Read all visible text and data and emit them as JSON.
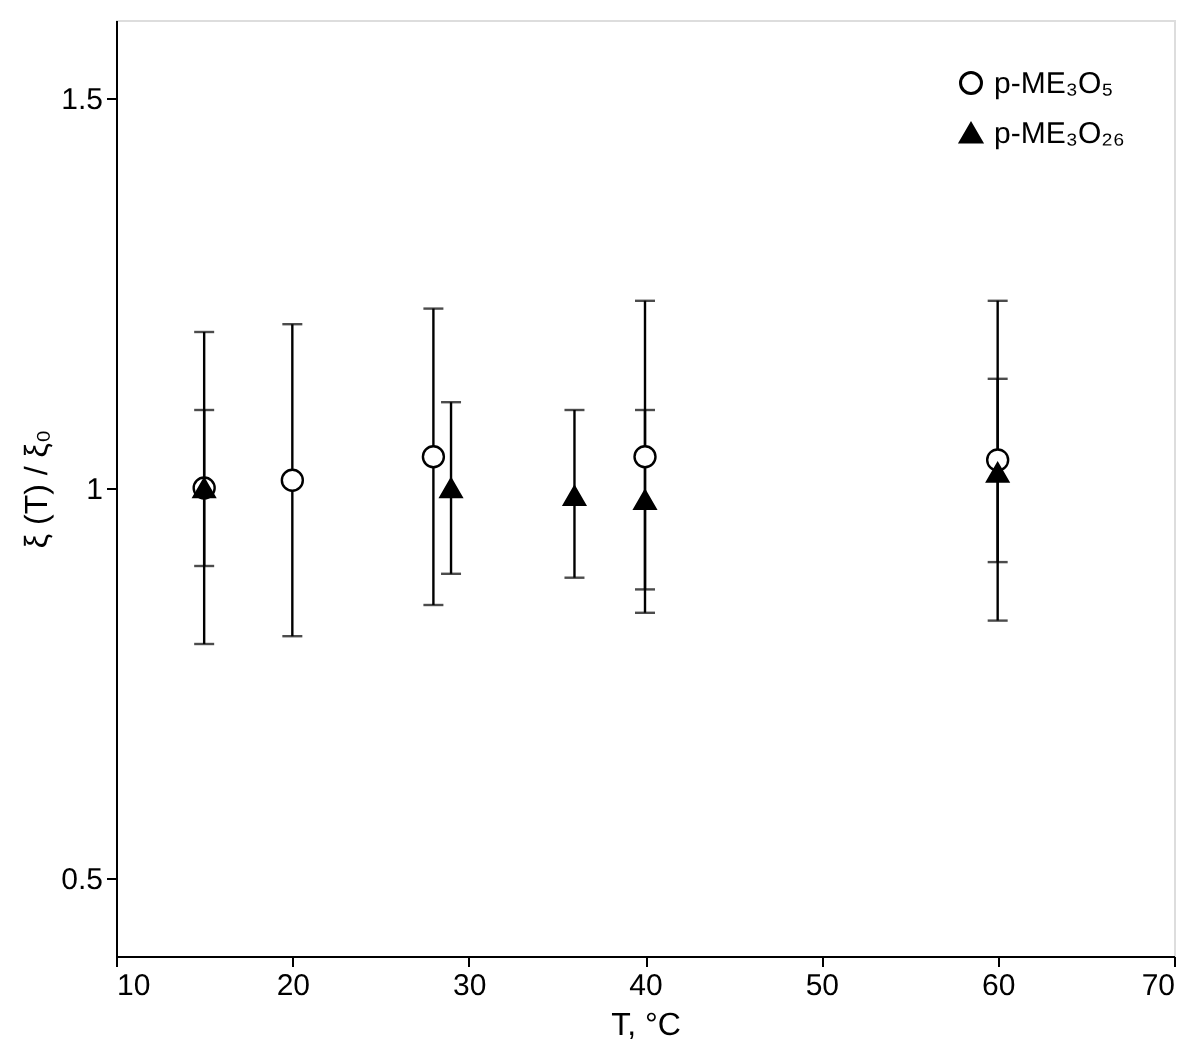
{
  "chart_data": {
    "type": "scatter",
    "xlabel": "T, °C",
    "ylabel": "ξ (T) / ξ₀",
    "xlim": [
      10,
      70
    ],
    "xticks": [
      10,
      20,
      30,
      40,
      50,
      60,
      70
    ],
    "ylim": [
      0.4,
      1.6
    ],
    "yticks": [
      0.5,
      1,
      1.5
    ],
    "grid": false,
    "legend": "top right",
    "series": [
      {
        "name": "p-ME₃O₅",
        "color": "#000000",
        "marker": "circle",
        "x": [
          15,
          20,
          28,
          40,
          60
        ],
        "values": [
          1.0,
          1.01,
          1.04,
          1.04,
          1.036
        ],
        "errors": [
          [
            0.8,
            1.2
          ],
          [
            0.81,
            1.21
          ],
          [
            0.85,
            1.23
          ],
          [
            0.84,
            1.24
          ],
          [
            0.83,
            1.24
          ]
        ]
      },
      {
        "name": "p-ME₃O₂₆",
        "color": "#000000",
        "marker": "triangle",
        "x": [
          15,
          29,
          36,
          40,
          60
        ],
        "values": [
          1.0,
          1.0,
          0.99,
          0.985,
          1.02
        ],
        "errors": [
          [
            0.9,
            1.1
          ],
          [
            0.89,
            1.11
          ],
          [
            0.885,
            1.1
          ],
          [
            0.87,
            1.1
          ],
          [
            0.905,
            1.14
          ]
        ]
      }
    ]
  }
}
